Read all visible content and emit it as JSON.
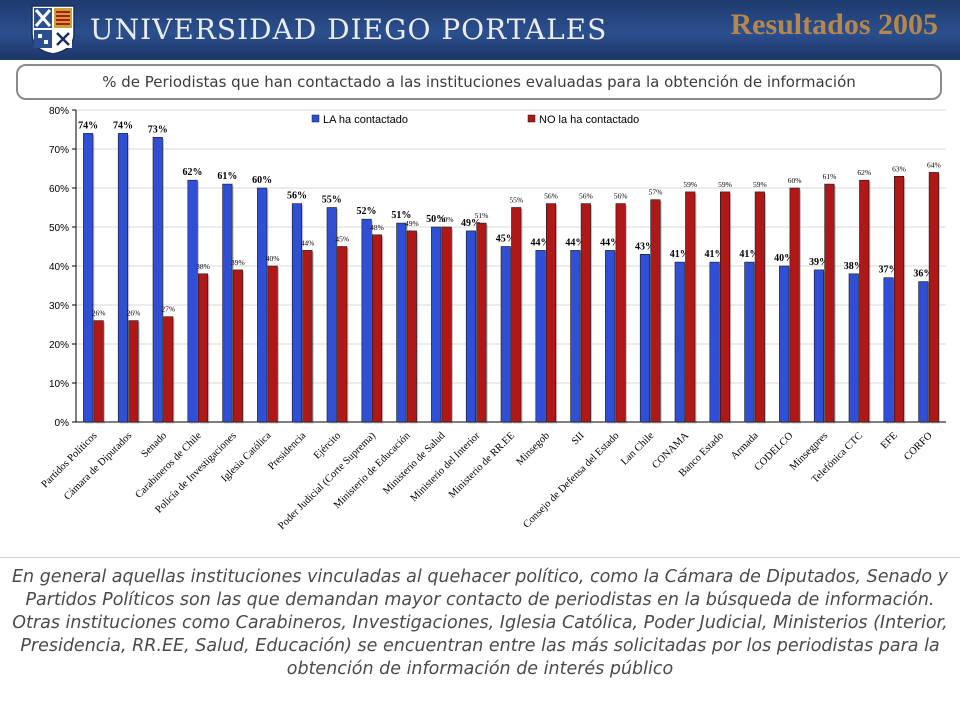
{
  "header": {
    "university_name": "UNIVERSIDAD DIEGO PORTALES",
    "results_title": "Resultados 2005"
  },
  "subtitle": "% de Periodistas que han contactado a las instituciones evaluadas para la obtención de información",
  "summary": "En general aquellas instituciones vinculadas al quehacer político, como la Cámara de Diputados, Senado y Partidos Políticos son las que demandan mayor contacto de periodistas en la búsqueda de información. Otras instituciones como Carabineros, Investigaciones, Iglesia Católica, Poder Judicial, Ministerios (Interior, Presidencia, RR.EE, Salud, Educación) se encuentran entre las más solicitadas por los periodistas para la obtención de información de interés público",
  "colors": {
    "header_bg": "#1e3a6e",
    "title_gold": "#b5874d",
    "series_la": "#2e4fd6",
    "series_no": "#b01818"
  },
  "chart_data": {
    "type": "bar",
    "ylim": [
      0,
      80
    ],
    "yticks": [
      "0%",
      "10%",
      "20%",
      "30%",
      "40%",
      "50%",
      "60%",
      "70%",
      "80%"
    ],
    "legend_position": "top",
    "categories": [
      "Partidos Políticos",
      "Cámara de Diputados",
      "Senado",
      "Carabineros de Chile",
      "Policía de Investigaciones",
      "Iglesia Católica",
      "Presidencia",
      "Ejército",
      "Poder Judicial (Corte Suprema)",
      "Ministerio de Educación",
      "Ministerio de Salud",
      "Ministerio del Interior",
      "Ministerio de RR.EE",
      "Minsegob",
      "SII",
      "Consejo de Defensa del Estado",
      "Lan Chile",
      "CONAMA",
      "Banco Estado",
      "Armada",
      "CODELCO",
      "Minsegpres",
      "Telefónica CTC",
      "EFE",
      "CORFO"
    ],
    "series": [
      {
        "name": "LA ha contactado",
        "values": [
          74,
          74,
          73,
          62,
          61,
          60,
          56,
          55,
          52,
          51,
          50,
          49,
          45,
          44,
          44,
          44,
          43,
          41,
          41,
          41,
          40,
          39,
          38,
          37,
          36
        ],
        "labels": [
          "74%",
          "74%",
          "73%",
          "62%",
          "61%",
          "60%",
          "56%",
          "55%",
          "52%",
          "51%",
          "50%",
          "49%",
          "45%",
          "44%",
          "44%",
          "44%",
          "43%",
          "41%",
          "41%",
          "41%",
          "40%",
          "39%",
          "38%",
          "37%",
          "36%"
        ]
      },
      {
        "name": "NO la ha contactado",
        "values": [
          26,
          26,
          27,
          38,
          39,
          40,
          44,
          45,
          48,
          49,
          50,
          51,
          55,
          56,
          56,
          56,
          57,
          59,
          59,
          59,
          60,
          61,
          62,
          63,
          64
        ],
        "labels": [
          "26%",
          "26%",
          "27%",
          "38%",
          "39%",
          "40%",
          "44%",
          "45%",
          "48%",
          "49%",
          "50%",
          "51%",
          "55%",
          "56%",
          "56%",
          "56%",
          "57%",
          "59%",
          "59%",
          "59%",
          "60%",
          "61%",
          "62%",
          "63%",
          "64%"
        ]
      }
    ]
  }
}
